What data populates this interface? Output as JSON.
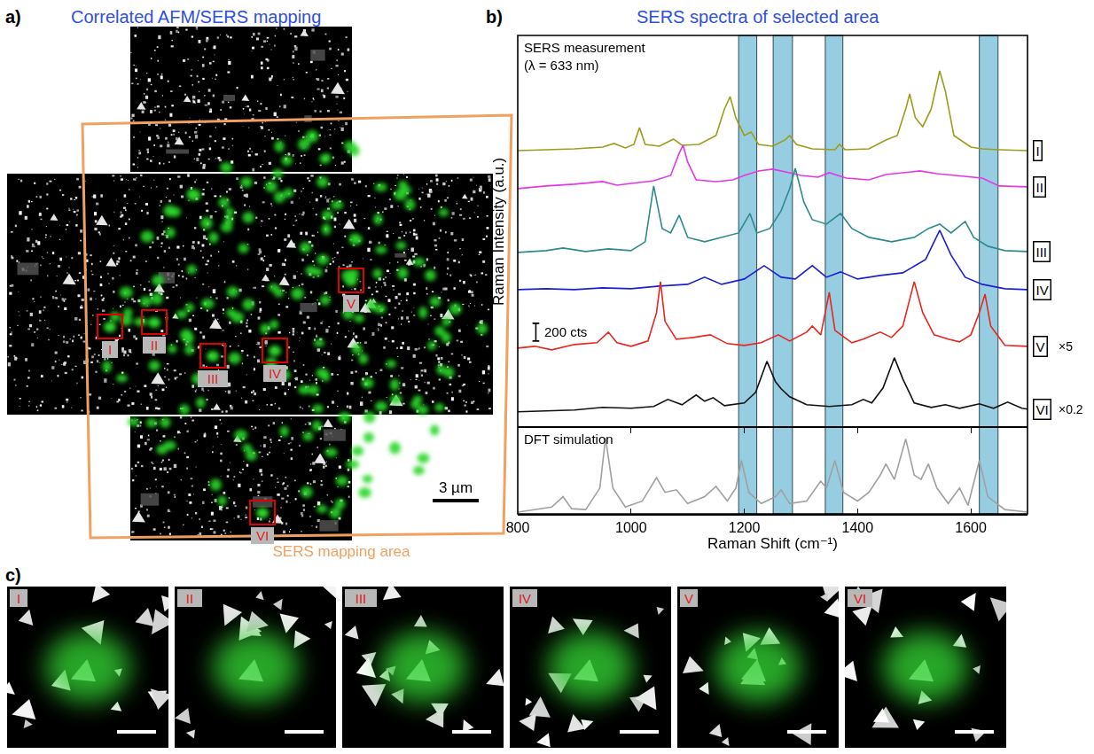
{
  "panel_a": {
    "label": "a)",
    "title": "Correlated AFM/SERS mapping",
    "regions": [
      "I",
      "II",
      "III",
      "IV",
      "V",
      "VI"
    ],
    "scale_bar": "3 µm",
    "mapping_area": "SERS mapping area"
  },
  "chart_data": {
    "type": "line",
    "panel_label": "b)",
    "title": "SERS spectra of selected area",
    "x_label": "Raman Shift (cm⁻¹)",
    "y_label": "Raman Intensity (a.u.)",
    "measurement_note": [
      "SERS measurement",
      "(λ = 633 nm)"
    ],
    "xlim": [
      800,
      1700
    ],
    "xticks": [
      800,
      1000,
      1200,
      1400,
      1600
    ],
    "ylim": [
      0,
      4430
    ],
    "tick_labels": "x",
    "grid": false,
    "scale_bar": {
      "value": 200,
      "label": "200 cts",
      "x": 832,
      "y": 980
    },
    "highlight_bands": [
      [
        1190,
        1222
      ],
      [
        1251,
        1285
      ],
      [
        1343,
        1374
      ],
      [
        1615,
        1648
      ]
    ],
    "series": [
      {
        "name": "I",
        "color": "#9c9c1c",
        "x": [
          800,
          850,
          900,
          950,
          970,
          990,
          1005,
          1015,
          1025,
          1050,
          1075,
          1090,
          1120,
          1150,
          1165,
          1175,
          1185,
          1200,
          1212,
          1225,
          1250,
          1272,
          1280,
          1292,
          1320,
          1360,
          1368,
          1378,
          1420,
          1450,
          1470,
          1485,
          1492,
          1502,
          1515,
          1530,
          1545,
          1555,
          1570,
          1600,
          1620,
          1650,
          1700
        ],
        "values": [
          3130,
          3140,
          3150,
          3170,
          3210,
          3160,
          3200,
          3390,
          3200,
          3180,
          3260,
          3190,
          3200,
          3300,
          3600,
          3740,
          3500,
          3300,
          3340,
          3200,
          3180,
          3250,
          3300,
          3200,
          3150,
          3140,
          3200,
          3140,
          3150,
          3250,
          3300,
          3600,
          3770,
          3500,
          3400,
          3600,
          4030,
          3800,
          3300,
          3170,
          3150,
          3140,
          3130
        ]
      },
      {
        "name": "II",
        "color": "#e636e6",
        "x": [
          800,
          850,
          900,
          950,
          975,
          1000,
          1040,
          1070,
          1085,
          1092,
          1100,
          1115,
          1150,
          1180,
          1200,
          1225,
          1250,
          1280,
          1300,
          1330,
          1350,
          1380,
          1420,
          1450,
          1480,
          1510,
          1540,
          1570,
          1600,
          1620,
          1650,
          1700
        ],
        "values": [
          2700,
          2730,
          2750,
          2780,
          2740,
          2760,
          2790,
          2850,
          3100,
          3190,
          3000,
          2800,
          2780,
          2800,
          2850,
          2900,
          2920,
          2880,
          2850,
          2830,
          2880,
          2820,
          2800,
          2860,
          2880,
          2900,
          2870,
          2850,
          2830,
          2820,
          2730,
          2720
        ]
      },
      {
        "name": "III",
        "color": "#2e8b8b",
        "x": [
          800,
          850,
          880,
          920,
          960,
          1000,
          1025,
          1040,
          1055,
          1070,
          1085,
          1100,
          1130,
          1160,
          1190,
          1210,
          1222,
          1245,
          1265,
          1280,
          1290,
          1305,
          1320,
          1345,
          1370,
          1390,
          1420,
          1460,
          1500,
          1525,
          1545,
          1565,
          1590,
          1605,
          1630,
          1660,
          1700
        ],
        "values": [
          1980,
          2000,
          2030,
          1990,
          2020,
          2000,
          2100,
          2730,
          2250,
          2200,
          2400,
          2150,
          2100,
          2150,
          2200,
          2420,
          2200,
          2250,
          2450,
          2700,
          2930,
          2550,
          2350,
          2300,
          2420,
          2250,
          2150,
          2100,
          2150,
          2250,
          2300,
          2200,
          2330,
          2150,
          2050,
          2000,
          1990
        ]
      },
      {
        "name": "IV",
        "color": "#1f1fd0",
        "x": [
          800,
          850,
          900,
          950,
          1000,
          1050,
          1100,
          1130,
          1160,
          1200,
          1235,
          1265,
          1290,
          1320,
          1345,
          1370,
          1400,
          1440,
          1480,
          1520,
          1545,
          1565,
          1590,
          1620,
          1660,
          1700
        ],
        "values": [
          1560,
          1570,
          1560,
          1580,
          1570,
          1600,
          1620,
          1700,
          1620,
          1680,
          1830,
          1700,
          1680,
          1830,
          1700,
          1760,
          1680,
          1720,
          1750,
          1900,
          2230,
          1950,
          1700,
          1620,
          1570,
          1560
        ]
      },
      {
        "name": "V",
        "color": "#e8251e",
        "multiplier_label": "×5",
        "x": [
          800,
          830,
          860,
          900,
          940,
          960,
          975,
          1000,
          1030,
          1045,
          1052,
          1060,
          1080,
          1110,
          1140,
          1170,
          1200,
          1230,
          1260,
          1280,
          1310,
          1320,
          1335,
          1350,
          1360,
          1390,
          1410,
          1440,
          1460,
          1480,
          1500,
          1515,
          1535,
          1560,
          1580,
          1600,
          1615,
          1625,
          1635,
          1660,
          1700
        ],
        "values": [
          900,
          920,
          880,
          940,
          960,
          1080,
          960,
          920,
          980,
          1300,
          1650,
          1200,
          1000,
          1020,
          1050,
          950,
          930,
          960,
          1050,
          980,
          1080,
          1150,
          1050,
          1530,
          1100,
          960,
          1000,
          1080,
          1020,
          1150,
          1650,
          1300,
          1050,
          1000,
          970,
          1050,
          1300,
          1510,
          1150,
          930,
          920
        ]
      },
      {
        "name": "VI",
        "color": "#111111",
        "multiplier_label": "×0.2",
        "x": [
          800,
          850,
          900,
          950,
          1000,
          1040,
          1065,
          1090,
          1115,
          1130,
          1145,
          1165,
          1200,
          1220,
          1240,
          1255,
          1265,
          1280,
          1310,
          1350,
          1390,
          1410,
          1425,
          1445,
          1465,
          1480,
          1500,
          1530,
          1555,
          1580,
          1615,
          1640,
          1665,
          1690,
          1700
        ],
        "values": [
          180,
          190,
          200,
          230,
          220,
          240,
          320,
          260,
          370,
          300,
          340,
          250,
          280,
          400,
          750,
          520,
          440,
          350,
          260,
          240,
          260,
          320,
          280,
          450,
          790,
          550,
          280,
          230,
          260,
          220,
          270,
          220,
          290,
          220,
          210
        ]
      }
    ],
    "simulation": {
      "title": "DFT simulation",
      "color": "#a0a0a0",
      "ylim": [
        0,
        1
      ],
      "x": [
        800,
        830,
        860,
        880,
        895,
        920,
        945,
        955,
        968,
        990,
        1020,
        1045,
        1060,
        1080,
        1100,
        1130,
        1150,
        1170,
        1185,
        1195,
        1208,
        1230,
        1255,
        1265,
        1280,
        1310,
        1335,
        1345,
        1360,
        1375,
        1400,
        1420,
        1440,
        1450,
        1465,
        1485,
        1500,
        1512,
        1525,
        1540,
        1560,
        1580,
        1595,
        1615,
        1630,
        1660,
        1700
      ],
      "values": [
        0.02,
        0.05,
        0.08,
        0.2,
        0.06,
        0.05,
        0.3,
        0.88,
        0.3,
        0.08,
        0.15,
        0.42,
        0.25,
        0.28,
        0.12,
        0.2,
        0.32,
        0.15,
        0.3,
        0.62,
        0.25,
        0.12,
        0.2,
        0.28,
        0.12,
        0.15,
        0.38,
        0.3,
        0.62,
        0.25,
        0.15,
        0.25,
        0.45,
        0.58,
        0.4,
        0.87,
        0.45,
        0.4,
        0.58,
        0.3,
        0.12,
        0.3,
        0.1,
        0.62,
        0.2,
        0.05,
        0.02
      ]
    }
  },
  "panel_c": {
    "label": "c)",
    "tiles": [
      "I",
      "II",
      "III",
      "IV",
      "V",
      "VI"
    ]
  }
}
